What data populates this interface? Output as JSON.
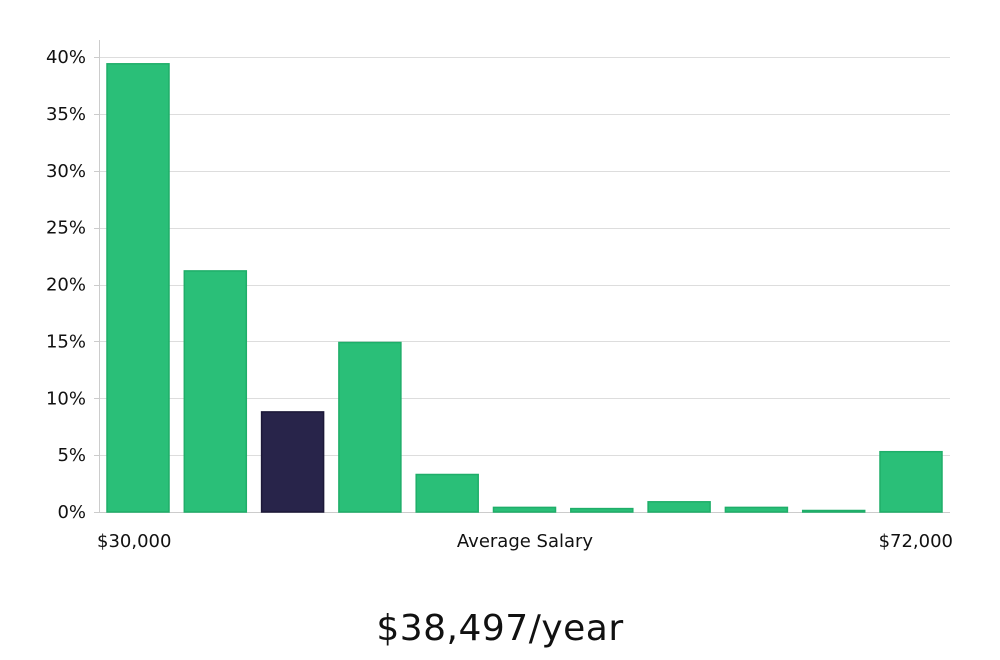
{
  "chart_data": {
    "type": "bar",
    "categories": [
      "1",
      "2",
      "3",
      "4",
      "5",
      "6",
      "7",
      "8",
      "9",
      "10",
      "11"
    ],
    "values": [
      39.4,
      21.2,
      8.8,
      14.9,
      3.3,
      0.4,
      0.3,
      0.9,
      0.4,
      0.1,
      5.3
    ],
    "highlight_index": 2,
    "ylim": [
      0,
      40
    ],
    "yticks": [
      0,
      5,
      10,
      15,
      20,
      25,
      30,
      35,
      40
    ],
    "ytick_format": "%",
    "grid": true,
    "x_min_label": "$30,000",
    "x_center_label": "Average Salary",
    "x_max_label": "$72,000",
    "colors": {
      "bar": "#2abf78",
      "bar_stroke": "#1fae69",
      "highlight": "#28244a",
      "grid": "#dddddd",
      "axis": "#cccccc"
    }
  },
  "salary": "$38,497/year"
}
